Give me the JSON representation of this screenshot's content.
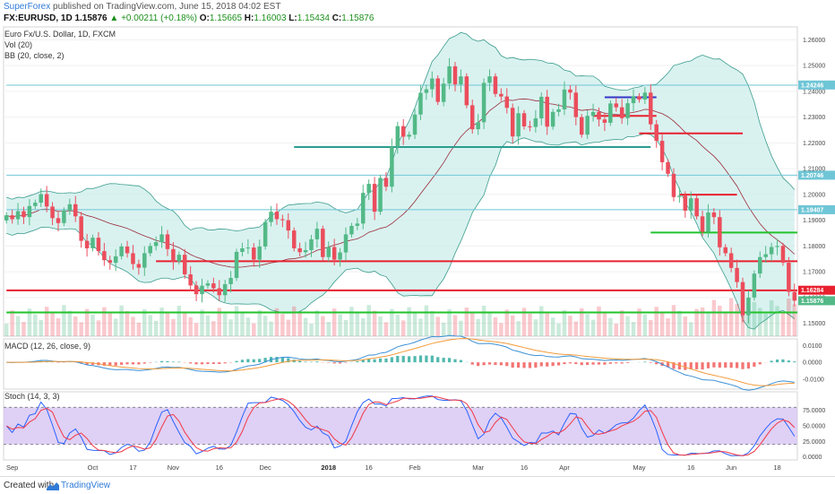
{
  "header": {
    "brand": "SuperForex",
    "published": " published on TradingView.com, June 15, 2018 04:02 EST",
    "symbol": "FX:EURUSD, 1D",
    "last": "1.15876",
    "change": "▲ +0.00211 (+0.18%)",
    "o_label": "O:",
    "o": "1.15665",
    "h_label": "H:",
    "h": "1.16003",
    "l_label": "L:",
    "l": "1.15434",
    "c_label": "C:",
    "c": "1.15876"
  },
  "panels": {
    "main_title": "Euro Fx/U.S. Dollar, 1D, FXCM",
    "vol": "Vol (20)",
    "bb": "BB (20, close, 2)",
    "macd": "MACD (12, 26, close, 9)",
    "stoch": "Stoch (14, 3, 3)"
  },
  "footer": {
    "created": "Created with",
    "brand": "TradingView"
  },
  "colors": {
    "up": "#53b987",
    "down": "#eb4d5c",
    "bb_fill": "#c9ecea",
    "bb_line": "#3b9c8d",
    "basis": "#9c2a37",
    "red_line": "#e8212f",
    "green_line": "#22c32b",
    "teal_line": "#2a9d8f",
    "cyan_line": "#6fc6d6",
    "stoch_bg": "#d7c4f3",
    "macd_line": "#3a8fd6",
    "signal_line": "#f29a3a"
  },
  "chart_data": {
    "type": "candlestick",
    "title": "Euro Fx/U.S. Dollar, 1D, FXCM",
    "x_ticks": [
      "Sep",
      "Oct",
      "17",
      "Nov",
      "16",
      "Dec",
      "2018",
      "16",
      "Feb",
      "Mar",
      "16",
      "Apr",
      "May",
      "16",
      "Jun",
      "18"
    ],
    "x_ticks_bold": [
      "2018"
    ],
    "price_axis": {
      "ticks": [
        "1.26000",
        "1.25000",
        "1.24000",
        "1.23000",
        "1.22000",
        "1.21000",
        "1.20000",
        "1.19000",
        "1.18000",
        "1.17000",
        "1.16000",
        "1.15000"
      ],
      "ylim": [
        1.145,
        1.265
      ],
      "labels": [
        {
          "text": "1.24246",
          "value": 1.24246,
          "color": "#6fc6d6"
        },
        {
          "text": "1.20746",
          "value": 1.20746,
          "color": "#6fc6d6"
        },
        {
          "text": "1.19407",
          "value": 1.19407,
          "color": "#6fc6d6"
        },
        {
          "text": "1.16284",
          "value": 1.16284,
          "color": "#e8212f"
        },
        {
          "text": "1.15876",
          "value": 1.15876,
          "color": "#53b987"
        }
      ]
    },
    "closes": [
      1.1919,
      1.1904,
      1.1935,
      1.1912,
      1.1955,
      1.1968,
      1.2001,
      1.1953,
      1.1908,
      1.1889,
      1.1938,
      1.1962,
      1.1915,
      1.182,
      1.1791,
      1.1832,
      1.178,
      1.1745,
      1.1735,
      1.176,
      1.1798,
      1.1772,
      1.173,
      1.1716,
      1.1772,
      1.18,
      1.1815,
      1.1845,
      1.1788,
      1.174,
      1.1766,
      1.169,
      1.1647,
      1.1613,
      1.1646,
      1.1655,
      1.1636,
      1.1609,
      1.1652,
      1.1676,
      1.1777,
      1.1791,
      1.1794,
      1.1747,
      1.1798,
      1.1893,
      1.1933,
      1.1904,
      1.19,
      1.186,
      1.1791,
      1.1776,
      1.1784,
      1.1826,
      1.1867,
      1.1757,
      1.1796,
      1.1747,
      1.1775,
      1.1845,
      1.1878,
      1.1887,
      1.2006,
      1.2041,
      1.1933,
      1.2064,
      1.203,
      1.2185,
      1.2265,
      1.2224,
      1.2232,
      1.231,
      1.2394,
      1.2408,
      1.245,
      1.2359,
      1.243,
      1.2497,
      1.2427,
      1.2458,
      1.2346,
      1.2253,
      1.228,
      1.2433,
      1.2458,
      1.239,
      1.238,
      1.2336,
      1.2225,
      1.2315,
      1.2264,
      1.2262,
      1.2295,
      1.2379,
      1.2263,
      1.232,
      1.233,
      1.2407,
      1.2395,
      1.23,
      1.2232,
      1.2305,
      1.232,
      1.2291,
      1.2278,
      1.2353,
      1.2338,
      1.2296,
      1.2354,
      1.2381,
      1.2368,
      1.2395,
      1.2272,
      1.2208,
      1.2125,
      1.208,
      1.199,
      1.1995,
      1.1937,
      1.1985,
      1.1915,
      1.1855,
      1.193,
      1.1912,
      1.1795,
      1.1772,
      1.1715,
      1.166,
      1.1531,
      1.16,
      1.1693,
      1.1757,
      1.1768,
      1.1796,
      1.18,
      1.1735,
      1.1622,
      1.1588
    ],
    "price_lines": [
      {
        "value": 1.2424,
        "color": "#6fc6d6"
      },
      {
        "value": 1.2075,
        "color": "#6fc6d6"
      },
      {
        "value": 1.1941,
        "color": "#6fc6d6"
      },
      {
        "value": 1.1628,
        "color": "#e8212f"
      },
      {
        "value": 1.1542,
        "color": "#22c32b"
      },
      {
        "value": 1.1741,
        "color": "#e8212f"
      },
      {
        "value": 1.2184,
        "color": "#2a9d8f"
      },
      {
        "value": 1.1852,
        "color": "#22c32b"
      },
      {
        "value": 1.2237,
        "color": "#e8212f"
      },
      {
        "value": 1.1999,
        "color": "#e8212f"
      },
      {
        "value": 1.2305,
        "color": "#e8212f"
      },
      {
        "value": 1.2377,
        "color": "#3535c8"
      }
    ],
    "macd_axis": {
      "ticks": [
        "0.0100",
        "0.0000",
        "-0.0100"
      ],
      "ylim": [
        -0.016,
        0.014
      ]
    },
    "stoch_axis": {
      "ticks": [
        "75.0000",
        "50.0000",
        "25.0000",
        "0.0000"
      ],
      "ylim": [
        -5,
        105
      ],
      "levels": [
        80,
        20
      ]
    },
    "volume_scale": [
      0,
      100
    ]
  }
}
